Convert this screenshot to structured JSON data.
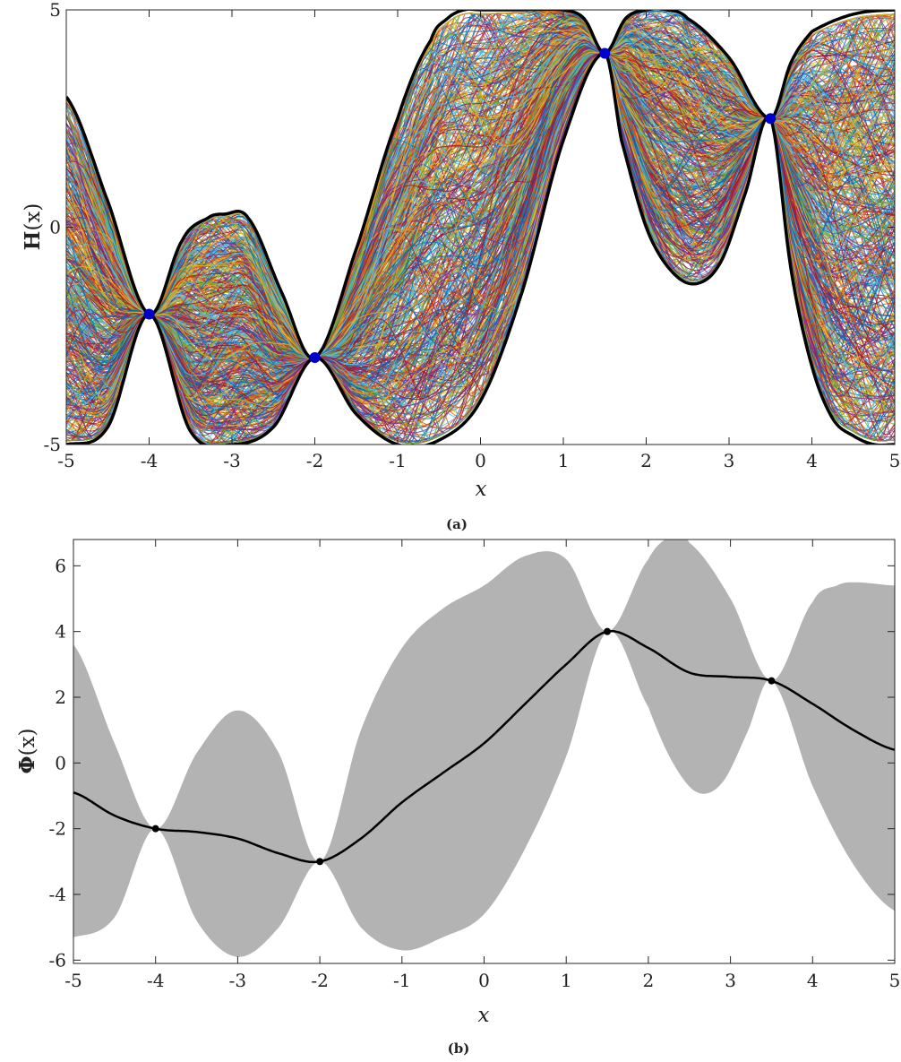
{
  "chart_data": [
    {
      "type": "line",
      "caption": "(a)",
      "xlabel": "x",
      "ylabel_bold": "H",
      "ylabel_rest": "(x)",
      "xlim": [
        -5,
        5
      ],
      "ylim": [
        -5,
        5
      ],
      "xticks": [
        "-5",
        "-4",
        "-3",
        "-2",
        "-1",
        "0",
        "1",
        "2",
        "3",
        "4",
        "5"
      ],
      "yticks": [
        "-5",
        "0",
        "5"
      ],
      "interpolation_points": {
        "x": [
          -4,
          -2,
          1.5,
          3.5
        ],
        "y": [
          -2,
          -3,
          4,
          2.5
        ]
      },
      "upper_envelope": {
        "x": [
          -5,
          -4.5,
          -4,
          -3.6,
          -3.3,
          -3.1,
          -2.8,
          -2.4,
          -2,
          -1.5,
          -1,
          -0.6,
          -0.4,
          -0.2,
          0,
          0.5,
          1,
          1.25,
          1.5,
          1.75,
          2,
          2.25,
          2.5,
          3,
          3.5,
          3.75,
          4,
          4.5,
          5
        ],
        "y": [
          3,
          0.6,
          -2,
          -0.3,
          0.2,
          0.3,
          0.2,
          -1.5,
          -3,
          -0.5,
          2.5,
          4.3,
          4.8,
          5,
          5,
          5,
          5,
          4.8,
          4,
          4.8,
          5,
          5,
          4.8,
          3.9,
          2.5,
          3.8,
          4.5,
          4.9,
          5
        ]
      },
      "lower_envelope": {
        "x": [
          -5,
          -4.5,
          -4,
          -3.5,
          -3,
          -2.5,
          -2,
          -1.5,
          -1,
          -0.5,
          0,
          0.5,
          1,
          1.5,
          1.7,
          2,
          2.3,
          2.6,
          2.9,
          3.2,
          3.5,
          3.75,
          4,
          4.25,
          4.5,
          4.75,
          5
        ],
        "y": [
          -5,
          -4.6,
          -2,
          -4.7,
          -5,
          -4.6,
          -3,
          -4.3,
          -5,
          -4.9,
          -4,
          -1.5,
          2,
          4,
          2,
          0,
          -1,
          -1.3,
          -0.8,
          0.8,
          2.5,
          -1,
          -3.2,
          -4.4,
          -4.8,
          -5,
          -5
        ]
      },
      "sample_count": 600,
      "series_colors": [
        "#0072BD",
        "#D95319",
        "#EDB120",
        "#7E2F8E",
        "#77AC30",
        "#4DBEEE",
        "#A2142F"
      ],
      "envelope_color": "#000000",
      "point_color": "#0000CC"
    },
    {
      "type": "area",
      "caption": "(b)",
      "xlabel": "x",
      "ylabel_bold": "Φ",
      "ylabel_rest": "(x)",
      "xlim": [
        -5,
        5
      ],
      "ylim": [
        -6.1,
        6.8
      ],
      "xticks": [
        "-5",
        "-4",
        "-3",
        "-2",
        "-1",
        "0",
        "1",
        "2",
        "3",
        "4",
        "5"
      ],
      "yticks": [
        "-6",
        "-4",
        "-2",
        "0",
        "2",
        "4",
        "6"
      ],
      "mean": {
        "x": [
          -5,
          -4.5,
          -4,
          -3.5,
          -3,
          -2.5,
          -2,
          -1.5,
          -1,
          -0.5,
          0,
          0.5,
          1,
          1.5,
          2,
          2.5,
          3,
          3.5,
          4,
          4.5,
          5
        ],
        "y": [
          -0.9,
          -1.6,
          -2,
          -2.1,
          -2.3,
          -2.75,
          -3,
          -2.3,
          -1.2,
          -0.3,
          0.6,
          1.8,
          3.0,
          4.0,
          3.5,
          2.75,
          2.62,
          2.5,
          1.8,
          1.0,
          0.4
        ]
      },
      "band_upper": {
        "x": [
          -5,
          -4.5,
          -4,
          -3.5,
          -3,
          -2.5,
          -2,
          -1.5,
          -1,
          -0.5,
          0,
          0.5,
          1,
          1.5,
          2,
          2.3,
          2.5,
          3,
          3.5,
          4,
          4.3,
          4.5,
          5
        ],
        "y": [
          3.6,
          0.6,
          -2,
          0.3,
          1.6,
          0.3,
          -3,
          1.0,
          3.5,
          4.7,
          5.4,
          6.3,
          6.2,
          4.0,
          6.2,
          6.9,
          6.7,
          5.0,
          2.5,
          4.9,
          5.4,
          5.5,
          5.4
        ]
      },
      "band_lower": {
        "x": [
          -5,
          -4.5,
          -4,
          -3.5,
          -3,
          -2.5,
          -2,
          -1.5,
          -1,
          -0.5,
          0,
          0.5,
          1,
          1.5,
          2,
          2.3,
          2.6,
          2.9,
          3.2,
          3.5,
          4,
          4.5,
          5
        ],
        "y": [
          -5.3,
          -4.7,
          -2,
          -4.8,
          -5.9,
          -5.0,
          -3,
          -5.0,
          -5.7,
          -5.3,
          -4.6,
          -2.6,
          0.2,
          4.0,
          1.7,
          0.0,
          -0.9,
          -0.6,
          0.9,
          2.5,
          -0.7,
          -3.1,
          -4.5
        ]
      },
      "points": {
        "x": [
          -4,
          -2,
          1.5,
          3.5
        ],
        "y": [
          -2,
          -3,
          4,
          2.5
        ]
      },
      "band_color": "#B3B3B3",
      "mean_color": "#000000"
    }
  ]
}
